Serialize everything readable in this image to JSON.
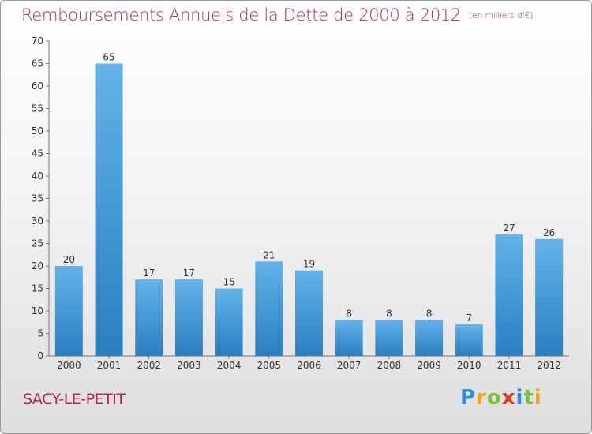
{
  "title": "Remboursements Annuels de la Dette de 2000 à 2012",
  "unit_note": "(en milliers d'€)",
  "commune": "SACY-LE-PETIT",
  "logo": {
    "letters": [
      "P",
      "r",
      "o",
      "x",
      "i",
      "t",
      "i"
    ],
    "colors": [
      "#2f8fd8",
      "#f0a020",
      "#7ac23a",
      "#e23a2a",
      "#2f8fd8",
      "#7ac23a",
      "#f0a020"
    ]
  },
  "colors": {
    "bar_light": "#63b3ea",
    "bar_dark": "#2a7fc0",
    "text": "#b5245a"
  },
  "chart_data": {
    "type": "bar",
    "categories": [
      "2000",
      "2001",
      "2002",
      "2003",
      "2004",
      "2005",
      "2006",
      "2007",
      "2008",
      "2009",
      "2010",
      "2011",
      "2012"
    ],
    "values": [
      20,
      65,
      17,
      17,
      15,
      21,
      19,
      8,
      8,
      8,
      7,
      27,
      26
    ],
    "title": "Remboursements Annuels de la Dette de 2000 à 2012",
    "xlabel": "",
    "ylabel": "",
    "ylim": [
      0,
      70
    ],
    "yticks": [
      0,
      5,
      10,
      15,
      20,
      25,
      30,
      35,
      40,
      45,
      50,
      55,
      60,
      65,
      70
    ],
    "grid": false,
    "legend": "none"
  }
}
